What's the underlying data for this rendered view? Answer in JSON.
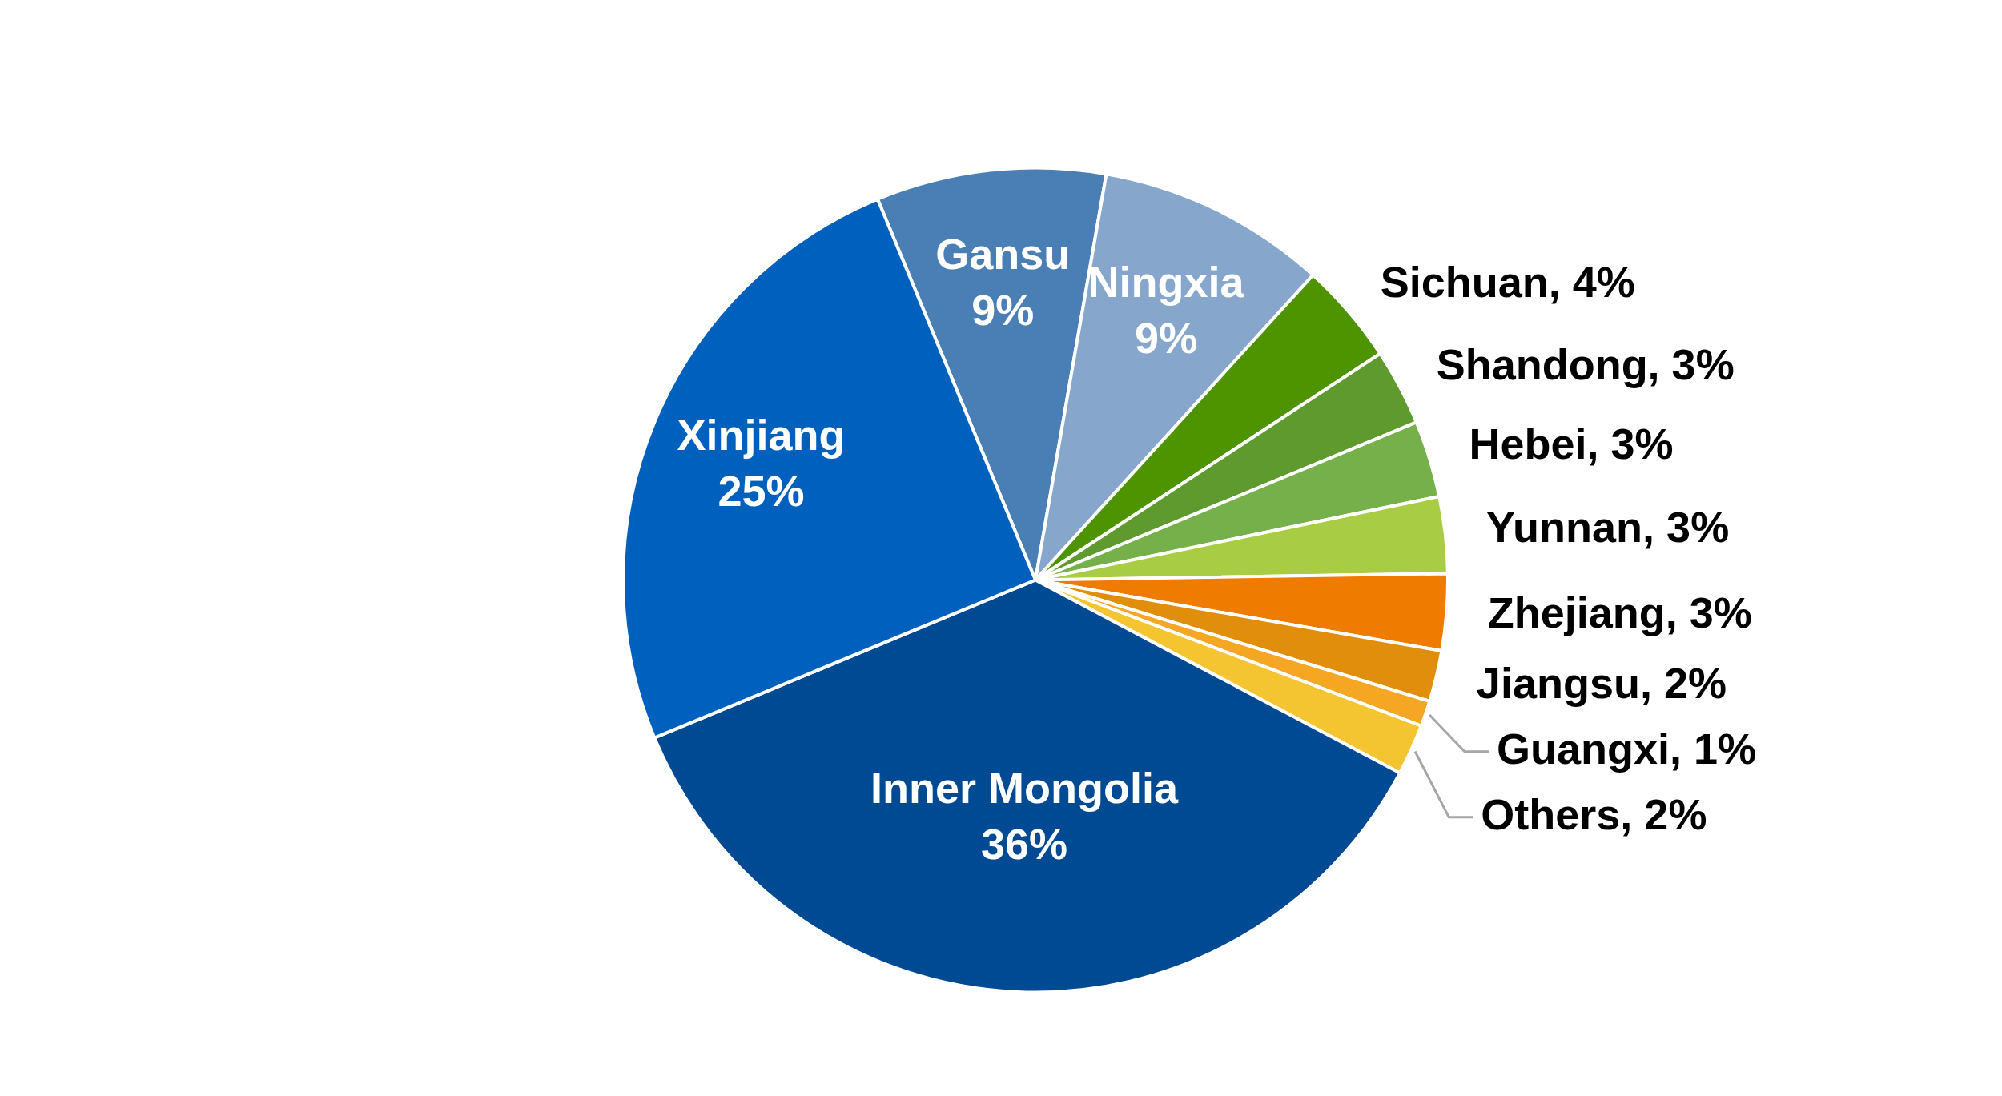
{
  "chart_data": {
    "type": "pie",
    "categories": [
      "Gansu",
      "Ningxia",
      "Sichuan",
      "Shandong",
      "Hebei",
      "Yunnan",
      "Zhejiang",
      "Jiangsu",
      "Guangxi",
      "Others",
      "Inner Mongolia",
      "Xinjiang"
    ],
    "values": [
      9,
      9,
      4,
      3,
      3,
      3,
      3,
      2,
      1,
      2,
      36,
      25
    ],
    "colors": [
      "#4a7fb5",
      "#86a6cc",
      "#4d9400",
      "#5f9a2e",
      "#76b04a",
      "#a8cc44",
      "#ef7b00",
      "#e08e0b",
      "#f5a623",
      "#f5c431",
      "#004a94",
      "#0060be"
    ],
    "value_labels": [
      "9%",
      "9%",
      "4%",
      "3%",
      "3%",
      "3%",
      "3%",
      "2%",
      "1%",
      "2%",
      "36%",
      "25%"
    ],
    "legend": false
  }
}
